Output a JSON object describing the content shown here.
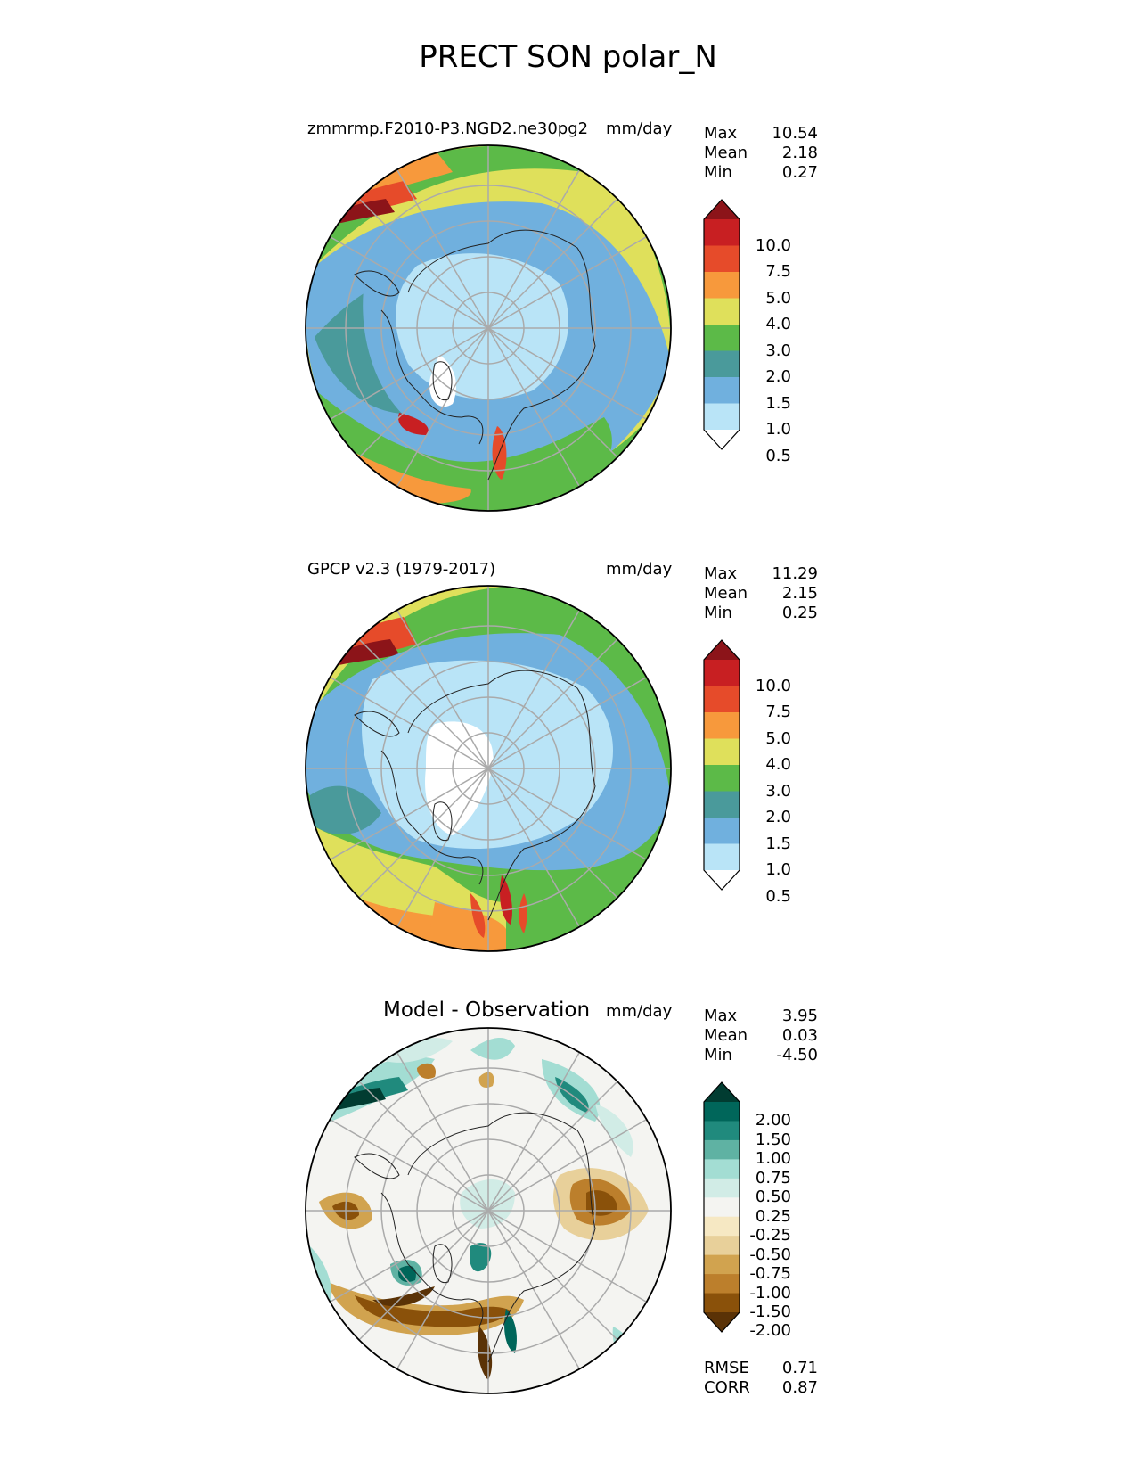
{
  "title": "PRECT SON polar_N",
  "panels": [
    {
      "left_title": "zmmrmp.F2010-P3.NGD2.ne30pg2",
      "right_title": "mm/day",
      "center_title": "",
      "stats": [
        [
          "Max",
          "10.54"
        ],
        [
          "Mean",
          "2.18"
        ],
        [
          "Min",
          "0.27"
        ]
      ],
      "colorbar": {
        "colors": [
          "#ffffff",
          "#b9e4f7",
          "#70b0de",
          "#4a9a9b",
          "#5cba48",
          "#dfe05b",
          "#f7993c",
          "#e64b2a",
          "#c81f22",
          "#8c1419"
        ],
        "ticks": [
          "10.0",
          "7.5",
          "5.0",
          "4.0",
          "3.0",
          "2.0",
          "1.5",
          "1.0",
          "0.5"
        ]
      }
    },
    {
      "left_title": "GPCP v2.3 (1979-2017)",
      "right_title": "mm/day",
      "center_title": "",
      "stats": [
        [
          "Max",
          "11.29"
        ],
        [
          "Mean",
          "2.15"
        ],
        [
          "Min",
          "0.25"
        ]
      ],
      "colorbar": {
        "colors": [
          "#ffffff",
          "#b9e4f7",
          "#70b0de",
          "#4a9a9b",
          "#5cba48",
          "#dfe05b",
          "#f7993c",
          "#e64b2a",
          "#c81f22",
          "#8c1419"
        ],
        "ticks": [
          "10.0",
          "7.5",
          "5.0",
          "4.0",
          "3.0",
          "2.0",
          "1.5",
          "1.0",
          "0.5"
        ]
      }
    },
    {
      "left_title": "",
      "right_title": "mm/day",
      "center_title": "Model - Observation",
      "stats": [
        [
          "Max",
          "3.95"
        ],
        [
          "Mean",
          "0.03"
        ],
        [
          "Min",
          "-4.50"
        ]
      ],
      "colorbar": {
        "colors": [
          "#5a3206",
          "#8a510a",
          "#bc7f2c",
          "#d1a34f",
          "#e8d09a",
          "#f6e8c3",
          "#f4f4f1",
          "#d1ece6",
          "#a3ddd3",
          "#5fb2a3",
          "#208a7d",
          "#00665a",
          "#013c31"
        ],
        "ticks": [
          "2.00",
          "1.50",
          "1.00",
          "0.75",
          "0.50",
          "0.25",
          "-0.25",
          "-0.50",
          "-0.75",
          "-1.00",
          "-1.50",
          "-2.00"
        ]
      },
      "metrics": [
        [
          "RMSE",
          "0.71"
        ],
        [
          "CORR",
          "0.87"
        ]
      ]
    }
  ]
}
